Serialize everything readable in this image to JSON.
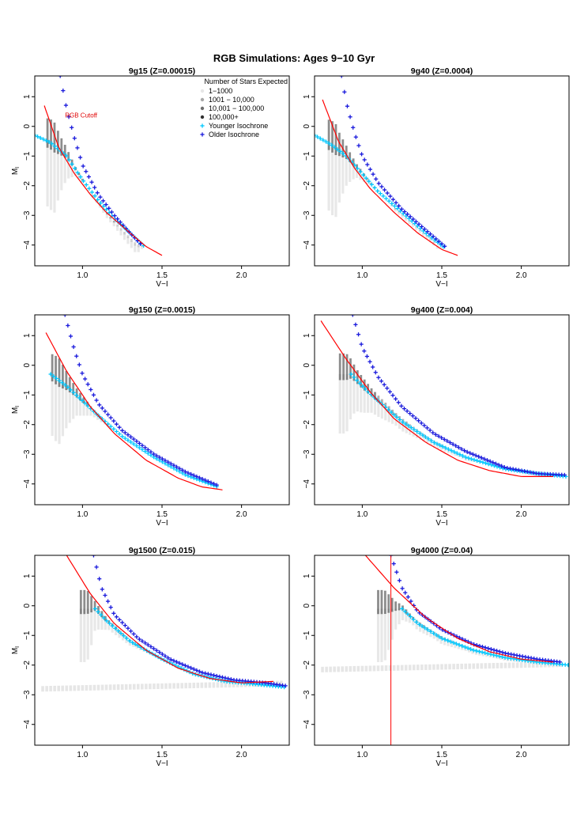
{
  "title": "RGB Simulations: Ages 9−10 Gyr",
  "colors": {
    "younger": "#00c8ff",
    "older": "#1a1adc",
    "fit": "#ff0000",
    "density": [
      "#e6e6e6",
      "#a8a8a8",
      "#6e6e6e",
      "#303030"
    ]
  },
  "legend": {
    "title": "Number of Stars Expected",
    "entries": [
      "1−1000",
      "1001 − 10,000",
      "10,001 − 100,000",
      "100,000+",
      "Younger Isochrone",
      "Older Isochrone"
    ]
  },
  "chart_data": [
    {
      "type": "scatter",
      "title": "9g15 (Z=0.00015)",
      "xlabel": "V−I",
      "ylabel": "M_I",
      "xlim": [
        0.7,
        2.3
      ],
      "ylim": [
        1.7,
        -4.7
      ],
      "xticks": [
        "1.0",
        "1.5",
        "2.0"
      ],
      "yticks": [
        "1",
        "0",
        "−1",
        "−2",
        "−3",
        "−4"
      ],
      "fit_curve": [
        [
          0.76,
          0.7
        ],
        [
          0.85,
          -0.7
        ],
        [
          0.95,
          -1.6
        ],
        [
          1.05,
          -2.3
        ],
        [
          1.15,
          -2.9
        ],
        [
          1.3,
          -3.6
        ],
        [
          1.4,
          -4.05
        ],
        [
          1.5,
          -4.35
        ]
      ],
      "younger_isochrone": [
        [
          0.7,
          -0.3
        ],
        [
          0.8,
          -0.55
        ],
        [
          0.9,
          -1.0
        ],
        [
          1.0,
          -1.8
        ],
        [
          1.1,
          -2.5
        ],
        [
          1.2,
          -3.1
        ],
        [
          1.3,
          -3.6
        ],
        [
          1.4,
          -4.1
        ]
      ],
      "older_isochrone": [
        [
          0.86,
          1.7
        ],
        [
          0.9,
          0.6
        ],
        [
          0.95,
          -0.4
        ],
        [
          1.0,
          -1.3
        ],
        [
          1.1,
          -2.3
        ],
        [
          1.2,
          -3.0
        ],
        [
          1.3,
          -3.6
        ],
        [
          1.38,
          -4.05
        ]
      ],
      "annotation": {
        "text": "RGB Cutoff",
        "x": 0.89,
        "y": 0.3
      },
      "vline": null,
      "band": null,
      "show_legend": true
    },
    {
      "type": "scatter",
      "title": "9g40 (Z=0.0004)",
      "xlabel": "V−I",
      "ylabel": "",
      "xlim": [
        0.7,
        2.3
      ],
      "ylim": [
        1.7,
        -4.7
      ],
      "xticks": [
        "1.0",
        "1.5",
        "2.0"
      ],
      "yticks": [
        "1",
        "0",
        "−1",
        "−2",
        "−3",
        "−4"
      ],
      "fit_curve": [
        [
          0.75,
          0.9
        ],
        [
          0.85,
          -0.5
        ],
        [
          0.95,
          -1.4
        ],
        [
          1.05,
          -2.1
        ],
        [
          1.2,
          -2.9
        ],
        [
          1.35,
          -3.6
        ],
        [
          1.5,
          -4.15
        ],
        [
          1.6,
          -4.35
        ]
      ],
      "younger_isochrone": [
        [
          0.7,
          -0.3
        ],
        [
          0.8,
          -0.6
        ],
        [
          0.9,
          -1.0
        ],
        [
          1.0,
          -1.6
        ],
        [
          1.1,
          -2.2
        ],
        [
          1.25,
          -2.9
        ],
        [
          1.4,
          -3.6
        ],
        [
          1.52,
          -4.1
        ]
      ],
      "older_isochrone": [
        [
          0.87,
          1.7
        ],
        [
          0.9,
          0.8
        ],
        [
          0.95,
          -0.2
        ],
        [
          1.0,
          -1.0
        ],
        [
          1.1,
          -1.9
        ],
        [
          1.25,
          -2.8
        ],
        [
          1.4,
          -3.5
        ],
        [
          1.52,
          -4.05
        ]
      ],
      "annotation": null,
      "vline": null,
      "band": null,
      "show_legend": false
    },
    {
      "type": "scatter",
      "title": "9g150 (Z=0.0015)",
      "xlabel": "V−I",
      "ylabel": "M_I",
      "xlim": [
        0.7,
        2.3
      ],
      "ylim": [
        1.7,
        -4.7
      ],
      "xticks": [
        "1.0",
        "1.5",
        "2.0"
      ],
      "yticks": [
        "1",
        "0",
        "−1",
        "−2",
        "−3",
        "−4"
      ],
      "fit_curve": [
        [
          0.77,
          1.1
        ],
        [
          0.9,
          -0.2
        ],
        [
          1.05,
          -1.4
        ],
        [
          1.2,
          -2.3
        ],
        [
          1.4,
          -3.2
        ],
        [
          1.6,
          -3.8
        ],
        [
          1.75,
          -4.1
        ],
        [
          1.88,
          -4.2
        ]
      ],
      "younger_isochrone": [
        [
          0.8,
          -0.3
        ],
        [
          0.9,
          -0.7
        ],
        [
          1.0,
          -1.2
        ],
        [
          1.1,
          -1.7
        ],
        [
          1.25,
          -2.4
        ],
        [
          1.45,
          -3.1
        ],
        [
          1.65,
          -3.7
        ],
        [
          1.85,
          -4.1
        ]
      ],
      "older_isochrone": [
        [
          0.89,
          1.7
        ],
        [
          0.95,
          0.5
        ],
        [
          1.0,
          -0.3
        ],
        [
          1.1,
          -1.3
        ],
        [
          1.25,
          -2.2
        ],
        [
          1.45,
          -3.0
        ],
        [
          1.65,
          -3.6
        ],
        [
          1.85,
          -4.05
        ]
      ],
      "annotation": null,
      "vline": null,
      "band": null,
      "show_legend": false
    },
    {
      "type": "scatter",
      "title": "9g400 (Z=0.004)",
      "xlabel": "V−I",
      "ylabel": "",
      "xlim": [
        0.7,
        2.3
      ],
      "ylim": [
        1.7,
        -4.7
      ],
      "xticks": [
        "1.0",
        "1.5",
        "2.0"
      ],
      "yticks": [
        "1",
        "0",
        "−1",
        "−2",
        "−3",
        "−4"
      ],
      "fit_curve": [
        [
          0.74,
          1.5
        ],
        [
          0.9,
          0.2
        ],
        [
          1.05,
          -0.9
        ],
        [
          1.2,
          -1.8
        ],
        [
          1.4,
          -2.6
        ],
        [
          1.6,
          -3.2
        ],
        [
          1.8,
          -3.55
        ],
        [
          2.0,
          -3.75
        ],
        [
          2.2,
          -3.75
        ]
      ],
      "younger_isochrone": [
        [
          0.93,
          -0.3
        ],
        [
          1.0,
          -0.7
        ],
        [
          1.1,
          -1.2
        ],
        [
          1.25,
          -1.9
        ],
        [
          1.45,
          -2.6
        ],
        [
          1.65,
          -3.1
        ],
        [
          1.9,
          -3.5
        ],
        [
          2.1,
          -3.65
        ],
        [
          2.28,
          -3.75
        ]
      ],
      "older_isochrone": [
        [
          0.94,
          1.7
        ],
        [
          1.0,
          0.6
        ],
        [
          1.1,
          -0.4
        ],
        [
          1.25,
          -1.4
        ],
        [
          1.45,
          -2.3
        ],
        [
          1.65,
          -2.9
        ],
        [
          1.9,
          -3.45
        ],
        [
          2.1,
          -3.65
        ],
        [
          2.28,
          -3.7
        ]
      ],
      "annotation": null,
      "vline": null,
      "band": null,
      "show_legend": false
    },
    {
      "type": "scatter",
      "title": "9g1500 (Z=0.015)",
      "xlabel": "V−I",
      "ylabel": "M_I",
      "xlim": [
        0.7,
        2.3
      ],
      "ylim": [
        1.7,
        -4.7
      ],
      "xticks": [
        "1.0",
        "1.5",
        "2.0"
      ],
      "yticks": [
        "1",
        "0",
        "−1",
        "−2",
        "−3",
        "−4"
      ],
      "fit_curve": [
        [
          0.9,
          1.7
        ],
        [
          1.05,
          0.4
        ],
        [
          1.2,
          -0.6
        ],
        [
          1.4,
          -1.5
        ],
        [
          1.6,
          -2.1
        ],
        [
          1.8,
          -2.45
        ],
        [
          2.0,
          -2.6
        ],
        [
          2.2,
          -2.55
        ]
      ],
      "younger_isochrone": [
        [
          1.08,
          -0.1
        ],
        [
          1.15,
          -0.5
        ],
        [
          1.3,
          -1.2
        ],
        [
          1.5,
          -1.8
        ],
        [
          1.7,
          -2.3
        ],
        [
          1.9,
          -2.55
        ],
        [
          2.1,
          -2.65
        ],
        [
          2.28,
          -2.75
        ]
      ],
      "older_isochrone": [
        [
          1.07,
          1.7
        ],
        [
          1.12,
          0.6
        ],
        [
          1.2,
          -0.3
        ],
        [
          1.35,
          -1.1
        ],
        [
          1.55,
          -1.8
        ],
        [
          1.75,
          -2.25
        ],
        [
          1.95,
          -2.5
        ],
        [
          2.15,
          -2.6
        ],
        [
          2.28,
          -2.7
        ]
      ],
      "annotation": null,
      "vline": null,
      "band": {
        "y": -2.8,
        "x_start": 0.75,
        "x_end": 2.25
      },
      "show_legend": false
    },
    {
      "type": "scatter",
      "title": "9g4000 (Z=0.04)",
      "xlabel": "V−I",
      "ylabel": "",
      "xlim": [
        0.7,
        2.3
      ],
      "ylim": [
        1.7,
        -4.7
      ],
      "xticks": [
        "1.0",
        "1.5",
        "2.0"
      ],
      "yticks": [
        "1",
        "0",
        "−1",
        "−2",
        "−3",
        "−4"
      ],
      "fit_curve": [
        [
          1.02,
          1.7
        ],
        [
          1.2,
          0.6
        ],
        [
          1.4,
          -0.4
        ],
        [
          1.6,
          -1.1
        ],
        [
          1.8,
          -1.55
        ],
        [
          2.0,
          -1.8
        ],
        [
          2.2,
          -1.9
        ]
      ],
      "younger_isochrone": [
        [
          1.25,
          -0.1
        ],
        [
          1.35,
          -0.6
        ],
        [
          1.5,
          -1.1
        ],
        [
          1.7,
          -1.5
        ],
        [
          1.9,
          -1.75
        ],
        [
          2.1,
          -1.9
        ],
        [
          2.3,
          -2.0
        ]
      ],
      "older_isochrone": [
        [
          1.18,
          1.7
        ],
        [
          1.25,
          0.6
        ],
        [
          1.35,
          -0.2
        ],
        [
          1.5,
          -0.8
        ],
        [
          1.7,
          -1.3
        ],
        [
          1.9,
          -1.6
        ],
        [
          2.1,
          -1.8
        ],
        [
          2.25,
          -1.9
        ]
      ],
      "annotation": null,
      "vline": {
        "x": 1.18
      },
      "band": {
        "y": -2.15,
        "x_start": 0.75,
        "x_end": 2.25
      },
      "show_legend": false
    }
  ]
}
